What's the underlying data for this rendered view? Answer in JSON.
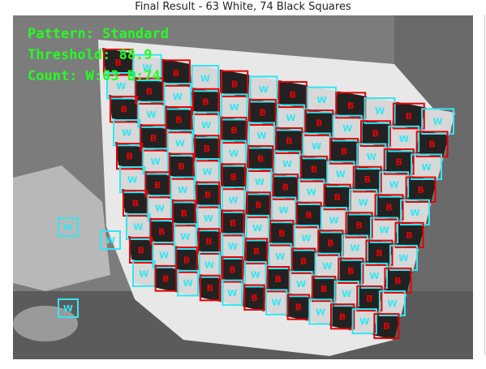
{
  "figure": {
    "title": "Final Result - 63 White, 74 Black Squares"
  },
  "overlay": {
    "pattern": "Pattern: Standard",
    "threshold": "Threshold: 88.9",
    "count": "Count: W:63 B:74"
  },
  "legend": {
    "white_label": "W",
    "black_label": "B"
  },
  "colors": {
    "white_box": "#33e6f2",
    "black_box": "#e60000",
    "overlay_text": "#22ff22"
  },
  "counts": {
    "white": 63,
    "black": 74
  }
}
